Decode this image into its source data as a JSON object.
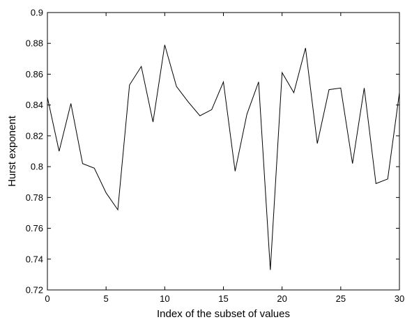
{
  "chart_data": {
    "type": "line",
    "title": "",
    "xlabel": "Index of the subset of values",
    "ylabel": "Hurst exponent",
    "xlim": [
      0,
      30
    ],
    "ylim": [
      0.72,
      0.9
    ],
    "xticks": [
      0,
      5,
      10,
      15,
      20,
      25,
      30
    ],
    "xtick_labels": [
      "0",
      "5",
      "10",
      "15",
      "20",
      "25",
      "30"
    ],
    "yticks": [
      0.72,
      0.74,
      0.76,
      0.78,
      0.8,
      0.82,
      0.84,
      0.86,
      0.88,
      0.9
    ],
    "ytick_labels": [
      "0.72",
      "0.74",
      "0.76",
      "0.78",
      "0.8",
      "0.82",
      "0.84",
      "0.86",
      "0.88",
      "0.9"
    ],
    "grid": false,
    "line_color": "#000000",
    "series": [
      {
        "x": [
          0,
          1,
          2,
          3,
          4,
          5,
          6,
          7,
          8,
          9,
          10,
          11,
          12,
          13,
          14,
          15,
          16,
          17,
          18,
          19,
          20,
          21,
          22,
          23,
          24,
          25,
          26,
          27,
          28,
          29,
          30
        ],
        "values": [
          0.845,
          0.81,
          0.841,
          0.802,
          0.799,
          0.783,
          0.772,
          0.853,
          0.865,
          0.829,
          0.879,
          0.852,
          0.842,
          0.833,
          0.837,
          0.855,
          0.797,
          0.834,
          0.855,
          0.733,
          0.861,
          0.848,
          0.877,
          0.815,
          0.85,
          0.851,
          0.802,
          0.851,
          0.789,
          0.792,
          0.848
        ]
      }
    ]
  }
}
